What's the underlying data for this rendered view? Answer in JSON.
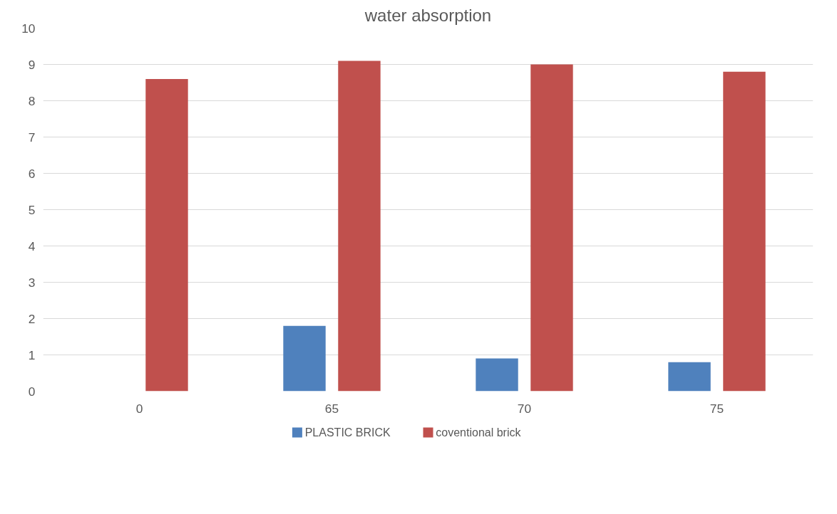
{
  "chart_data": {
    "type": "bar",
    "title": "water absorption",
    "categories": [
      "0",
      "65",
      "70",
      "75"
    ],
    "series": [
      {
        "name": "PLASTIC BRICK",
        "color": "#4f81bd",
        "values": [
          0,
          1.8,
          0.9,
          0.8
        ]
      },
      {
        "name": "coventional brick",
        "color": "#c0504d",
        "values": [
          8.6,
          9.1,
          9.0,
          8.8
        ]
      }
    ],
    "ylim": [
      0,
      10
    ],
    "yticks": [
      0,
      1,
      2,
      3,
      4,
      5,
      6,
      7,
      8,
      9,
      10
    ],
    "grid": "y",
    "legend": "bottom"
  }
}
